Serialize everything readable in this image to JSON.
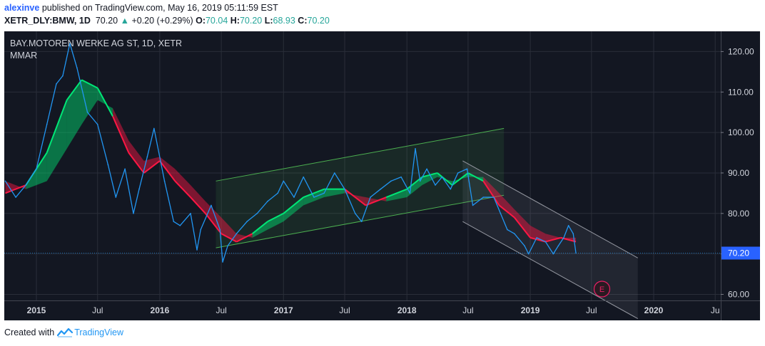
{
  "header": {
    "author": "alexinve",
    "published": " published on TradingView.com, May 16, 2019 05:11:59 EST",
    "symbol": "XETR_DLY:BMW, 1D",
    "price": "70.20",
    "change": "+0.20 (+0.29%)",
    "o_label": "O:",
    "o_value": "70.04",
    "h_label": "H:",
    "h_value": "70.20",
    "l_label": "L:",
    "l_value": "68.93",
    "c_label": "C:",
    "c_value": "70.20"
  },
  "footer": {
    "created_with": "Created with",
    "brand": "TradingView"
  },
  "colors": {
    "background": "#131722",
    "price_line": "#2196f3",
    "ribbon_up": "#00e676",
    "ribbon_down": "#ff1744",
    "channel_up": "#4caf50",
    "channel_down": "#9598a1",
    "last_price_label": "#2962ff",
    "event_marker": "#e91e63"
  },
  "chart_data": {
    "type": "line",
    "title": "BAY.MOTOREN WERKE AG ST, 1D, XETR",
    "subtitle": "MMAR",
    "x_ticks": [
      "2015",
      "Jul",
      "2016",
      "Jul",
      "2017",
      "Jul",
      "2018",
      "Jul",
      "2019",
      "Jul",
      "2020",
      "Ju"
    ],
    "y_ticks": [
      "120.00",
      "110.00",
      "100.00",
      "90.00",
      "80.00",
      "70.00",
      "60.00"
    ],
    "ylim": [
      58.5,
      125
    ],
    "last_price": "70.20",
    "event_marker": "E",
    "series": [
      {
        "kind": "price",
        "x": [
          "2014-10-01",
          "2014-11-01",
          "2014-12-01",
          "2015-01-01",
          "2015-02-01",
          "2015-03-01",
          "2015-03-20",
          "2015-04-10",
          "2015-05-01",
          "2015-06-01",
          "2015-07-01",
          "2015-08-01",
          "2015-08-24",
          "2015-09-20",
          "2015-10-15",
          "2015-11-01",
          "2015-11-25",
          "2015-12-15",
          "2016-01-15",
          "2016-02-11",
          "2016-03-01",
          "2016-04-01",
          "2016-04-20",
          "2016-05-01",
          "2016-06-01",
          "2016-06-27",
          "2016-07-05",
          "2016-07-20",
          "2016-08-15",
          "2016-09-15",
          "2016-10-15",
          "2016-11-15",
          "2016-12-15",
          "2017-01-01",
          "2017-02-01",
          "2017-03-01",
          "2017-04-01",
          "2017-05-01",
          "2017-06-01",
          "2017-07-01",
          "2017-08-01",
          "2017-08-20",
          "2017-09-15",
          "2017-10-15",
          "2017-11-15",
          "2017-12-15",
          "2018-01-10",
          "2018-01-26",
          "2018-02-09",
          "2018-03-01",
          "2018-03-26",
          "2018-04-15",
          "2018-05-10",
          "2018-06-01",
          "2018-06-28",
          "2018-07-15",
          "2018-08-15",
          "2018-09-15",
          "2018-10-05",
          "2018-10-25",
          "2018-11-15",
          "2018-12-15",
          "2018-12-27",
          "2019-01-20",
          "2019-02-15",
          "2019-03-10",
          "2019-03-25",
          "2019-04-10",
          "2019-04-24",
          "2019-05-08",
          "2019-05-16"
        ],
        "y": [
          88,
          84,
          87,
          91,
          102,
          112,
          114,
          122,
          116,
          105,
          102,
          92,
          84,
          91,
          80,
          86,
          94,
          101,
          88,
          78,
          77,
          80,
          71,
          76,
          82,
          76,
          68,
          72,
          75,
          78,
          80,
          83,
          85,
          88,
          84,
          89,
          84,
          85,
          90,
          86,
          80,
          78,
          84,
          86,
          88,
          89,
          85,
          96,
          88,
          91,
          87,
          89,
          86,
          90,
          91,
          82,
          84,
          84,
          80,
          76,
          75,
          72,
          70,
          74,
          73,
          70,
          72,
          74,
          77,
          75,
          70.2
        ]
      },
      {
        "kind": "ma_fast",
        "x": [
          "2014-10-01",
          "2014-12-01",
          "2015-02-01",
          "2015-04-01",
          "2015-05-15",
          "2015-07-01",
          "2015-08-15",
          "2015-10-01",
          "2015-11-15",
          "2016-01-01",
          "2016-02-15",
          "2016-04-01",
          "2016-05-15",
          "2016-07-01",
          "2016-08-15",
          "2016-10-01",
          "2016-11-15",
          "2017-01-01",
          "2017-03-01",
          "2017-05-01",
          "2017-07-01",
          "2017-09-01",
          "2017-11-01",
          "2018-01-01",
          "2018-02-15",
          "2018-04-01",
          "2018-05-15",
          "2018-07-01",
          "2018-08-15",
          "2018-10-01",
          "2018-11-15",
          "2019-01-01",
          "2019-02-15",
          "2019-04-01",
          "2019-05-16"
        ],
        "y": [
          85,
          87,
          95,
          108,
          113,
          111,
          104,
          95,
          90,
          93,
          88,
          84,
          80,
          75,
          73,
          75,
          78,
          80,
          84,
          86,
          86,
          82,
          84,
          86,
          89,
          90,
          87,
          90,
          88,
          82,
          79,
          74,
          73,
          74,
          73
        ]
      },
      {
        "kind": "ma_slow",
        "x": [
          "2014-10-01",
          "2014-12-01",
          "2015-02-01",
          "2015-04-01",
          "2015-05-15",
          "2015-07-01",
          "2015-08-15",
          "2015-10-01",
          "2015-11-15",
          "2016-01-01",
          "2016-02-15",
          "2016-04-01",
          "2016-05-15",
          "2016-07-01",
          "2016-08-15",
          "2016-10-01",
          "2016-11-15",
          "2017-01-01",
          "2017-03-01",
          "2017-05-01",
          "2017-07-01",
          "2017-09-01",
          "2017-11-01",
          "2018-01-01",
          "2018-02-15",
          "2018-04-01",
          "2018-05-15",
          "2018-07-01",
          "2018-08-15",
          "2018-10-01",
          "2018-11-15",
          "2019-01-01",
          "2019-02-15",
          "2019-04-01",
          "2019-05-16"
        ],
        "y": [
          88,
          86,
          88,
          96,
          102,
          108,
          106,
          98,
          93,
          94,
          91,
          87,
          83,
          79,
          75,
          74,
          76,
          78,
          82,
          84,
          85,
          84,
          83,
          84,
          87,
          89,
          88,
          89,
          89,
          85,
          81,
          77,
          75,
          74,
          74
        ]
      }
    ],
    "channels": [
      {
        "name": "ascending",
        "start": [
          "2016-06-15",
          88
        ],
        "end": [
          "2018-10-15",
          101
        ],
        "width": 16.5
      },
      {
        "name": "descending",
        "start": [
          "2018-06-15",
          93
        ],
        "end": [
          "2019-11-15",
          69
        ],
        "width": 15
      }
    ]
  }
}
